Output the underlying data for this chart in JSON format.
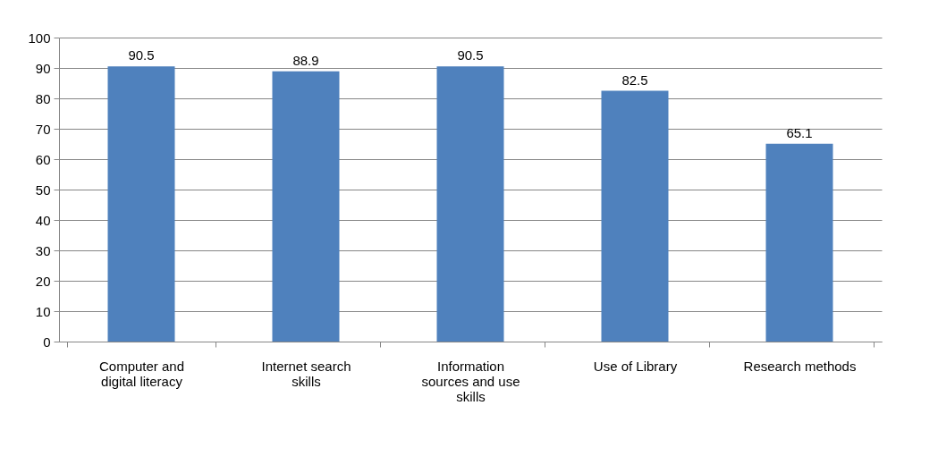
{
  "chart_data": {
    "type": "bar",
    "categories": [
      "Computer and digital literacy",
      "Internet search skills",
      "Information sources and use skills",
      "Use of Library",
      "Research methods"
    ],
    "values": [
      90.5,
      88.9,
      90.5,
      82.5,
      65.1
    ],
    "color": "#4f81bd",
    "ylim": [
      0,
      100
    ],
    "yticks": [
      0,
      10,
      20,
      30,
      40,
      50,
      60,
      70,
      80,
      90,
      100
    ],
    "grid": "y",
    "data_labels": true
  }
}
